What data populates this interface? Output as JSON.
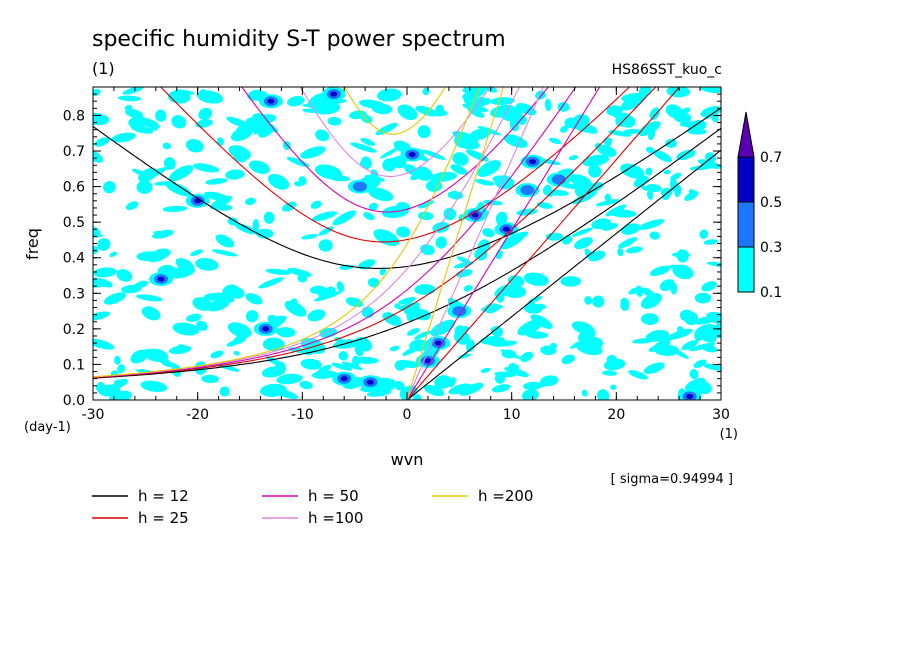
{
  "chart_data": {
    "type": "heatmap",
    "title": "specific humidity S-T power spectrum",
    "subtitle_left": "(1)",
    "subtitle_right": "HS86SST_kuo_c",
    "xlabel": "wvn",
    "xunit": "(1)",
    "ylabel": "freq",
    "yunit": "(day-1)",
    "xlim": [
      -30,
      30
    ],
    "ylim": [
      0,
      0.88
    ],
    "xticks": [
      -30,
      -20,
      -10,
      0,
      10,
      20,
      30
    ],
    "xtick_labels": [
      "-30",
      "-20",
      "-10",
      "0",
      "10",
      "20",
      "30"
    ],
    "yticks": [
      0,
      0.1,
      0.2,
      0.3,
      0.4,
      0.5,
      0.6,
      0.7,
      0.8
    ],
    "ytick_labels": [
      "0.0",
      "0.1",
      "0.2",
      "0.3",
      "0.4",
      "0.5",
      "0.6",
      "0.7",
      "0.8"
    ],
    "sigma_note": "[ sigma=0.94994 ]",
    "colorbar": {
      "levels": [
        0.1,
        0.3,
        0.5,
        0.7
      ],
      "labels": [
        "0.1",
        "0.3",
        "0.5",
        "0.7"
      ],
      "colors": [
        "#00ffff",
        "#1e78ff",
        "#0000c8",
        "#5a00b4"
      ]
    },
    "dispersion_curves": [
      {
        "name": "h = 12",
        "h": 12,
        "color": "#000000"
      },
      {
        "name": "h = 25",
        "h": 25,
        "color": "#dd0000"
      },
      {
        "name": "h = 50",
        "h": 50,
        "color": "#d400b4"
      },
      {
        "name": "h =100",
        "h": 100,
        "color": "#dd88dd"
      },
      {
        "name": "h =200",
        "h": 200,
        "color": "#e6c800"
      }
    ],
    "high_power_spots": [
      {
        "k": -6.0,
        "f": 0.06,
        "level": 0.5
      },
      {
        "k": -3.5,
        "f": 0.05,
        "level": 0.5
      },
      {
        "k": 2.0,
        "f": 0.11,
        "level": 0.5
      },
      {
        "k": 3.0,
        "f": 0.16,
        "level": 0.5
      },
      {
        "k": 5.0,
        "f": 0.25,
        "level": 0.3
      },
      {
        "k": 9.5,
        "f": 0.48,
        "level": 0.5
      },
      {
        "k": 12.0,
        "f": 0.67,
        "level": 0.5
      },
      {
        "k": 11.5,
        "f": 0.59,
        "level": 0.3
      },
      {
        "k": 14.5,
        "f": 0.62,
        "level": 0.3
      },
      {
        "k": 6.5,
        "f": 0.52,
        "level": 0.5
      },
      {
        "k": -13.5,
        "f": 0.2,
        "level": 0.5
      },
      {
        "k": -23.5,
        "f": 0.34,
        "level": 0.5
      },
      {
        "k": -20.0,
        "f": 0.56,
        "level": 0.5
      },
      {
        "k": -13.0,
        "f": 0.84,
        "level": 0.5
      },
      {
        "k": -4.5,
        "f": 0.6,
        "level": 0.3
      },
      {
        "k": 0.5,
        "f": 0.69,
        "level": 0.5
      },
      {
        "k": -7.0,
        "f": 0.86,
        "level": 0.5
      },
      {
        "k": 27.0,
        "f": 0.01,
        "level": 0.5
      }
    ]
  }
}
